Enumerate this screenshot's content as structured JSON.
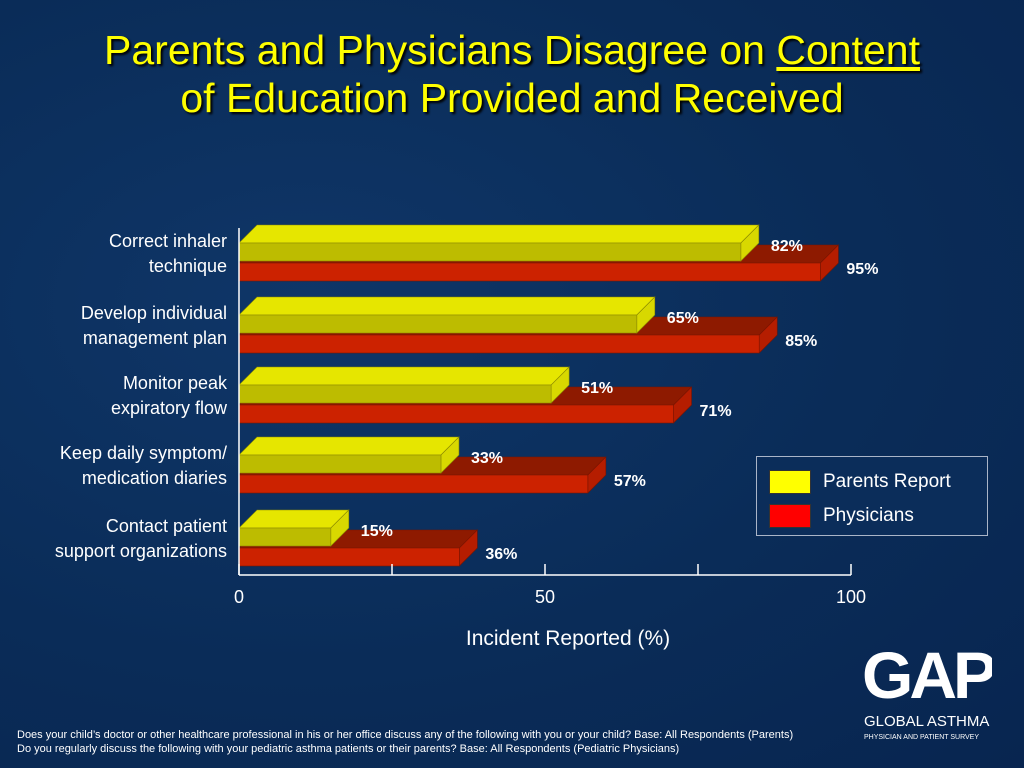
{
  "title": {
    "line1_prefix": "Parents and Physicians Disagree on ",
    "line1_underlined": "Content",
    "line2": "of Education Provided and Received"
  },
  "chart_data": {
    "type": "bar",
    "orientation": "horizontal",
    "categories": [
      "Correct inhaler technique",
      "Develop individual management plan",
      "Monitor peak expiratory flow",
      "Keep daily symptom/ medication diaries",
      "Contact patient support organizations"
    ],
    "category_label_lines": [
      [
        "Correct inhaler",
        "technique"
      ],
      [
        "Develop individual",
        "management plan"
      ],
      [
        "Monitor peak",
        "expiratory flow"
      ],
      [
        "Keep daily symptom/",
        "medication diaries"
      ],
      [
        "Contact patient",
        "support organizations"
      ]
    ],
    "series": [
      {
        "name": "Parents Report",
        "color": "#ffff00",
        "values": [
          82,
          65,
          51,
          33,
          15
        ],
        "labels": [
          "82%",
          "65%",
          "51%",
          "33%",
          "15%"
        ]
      },
      {
        "name": "Physicians",
        "color": "#ff0000",
        "values": [
          95,
          85,
          71,
          57,
          36
        ],
        "labels": [
          "95%",
          "85%",
          "71%",
          "57%",
          "36%"
        ]
      }
    ],
    "xlim": [
      0,
      100
    ],
    "xticks": [
      "0",
      "50",
      "100"
    ],
    "xlabel": "Incident Reported (%)",
    "legend_position": "right",
    "grid": false
  },
  "footnote": {
    "line1": "Does your child’s doctor or other healthcare professional in his or her office discuss any of the following with you or your child?  Base:  All Respondents (Parents)",
    "line2": "Do you regularly discuss the following with your pediatric asthma patients or their parents?  Base:  All Respondents (Pediatric Physicians)"
  },
  "logo": {
    "letters": "GAP",
    "line1": "GLOBAL ASTHMA",
    "line2": "PHYSICIAN AND PATIENT SURVEY"
  }
}
